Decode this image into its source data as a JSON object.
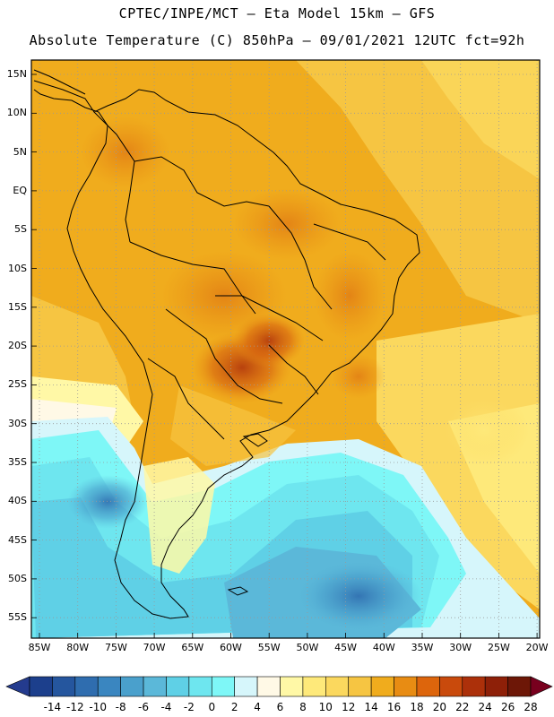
{
  "header": {
    "line1": "CPTEC/INPE/MCT –  Eta Model 15km – GFS",
    "line2": "Absolute Temperature (C) 850hPa – 09/01/2021 12UTC fct=92h"
  },
  "map": {
    "lat_labels": [
      "15N",
      "10N",
      "5N",
      "EQ",
      "5S",
      "10S",
      "15S",
      "20S",
      "25S",
      "30S",
      "35S",
      "40S",
      "45S",
      "50S",
      "55S"
    ],
    "lon_labels": [
      "85W",
      "80W",
      "75W",
      "70W",
      "65W",
      "60W",
      "55W",
      "50W",
      "45W",
      "40W",
      "35W",
      "30W",
      "25W",
      "20W"
    ]
  },
  "colorbar": {
    "labels": [
      "-14",
      "-12",
      "-10",
      "-8",
      "-6",
      "-4",
      "-2",
      "0",
      "2",
      "4",
      "6",
      "8",
      "10",
      "12",
      "14",
      "16",
      "18",
      "20",
      "22",
      "24",
      "26",
      "28"
    ],
    "colors": [
      "#1c3f8c",
      "#25569e",
      "#2f6daf",
      "#3a86c0",
      "#4aa0cc",
      "#5bb8d9",
      "#5fd0e6",
      "#6ee6ef",
      "#7ef7f7",
      "#d6f6fb",
      "#fff9e6",
      "#fff8a6",
      "#fee97a",
      "#fbd85e",
      "#f6c542",
      "#f0ac1d",
      "#e88c13",
      "#dd650c",
      "#c94a0c",
      "#ac300a",
      "#8e2008",
      "#6d1707"
    ],
    "low_color": "#243b8e",
    "high_color": "#78001e"
  }
}
